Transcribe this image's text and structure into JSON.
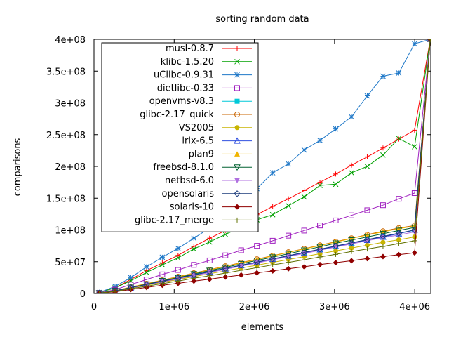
{
  "chart_data": {
    "type": "line",
    "title": "sorting random data",
    "xlabel": "elements",
    "ylabel": "comparisons",
    "xlim": [
      0,
      4200000
    ],
    "ylim": [
      0,
      400000000
    ],
    "x_ticks": [
      {
        "value": 0,
        "label": "0"
      },
      {
        "value": 1000000,
        "label": "1e+06"
      },
      {
        "value": 2000000,
        "label": "2e+06"
      },
      {
        "value": 3000000,
        "label": "3e+06"
      },
      {
        "value": 4000000,
        "label": "4e+06"
      }
    ],
    "y_ticks": [
      {
        "value": 0,
        "label": "0"
      },
      {
        "value": 50000000,
        "label": "5e+07"
      },
      {
        "value": 100000000,
        "label": "1e+08"
      },
      {
        "value": 150000000,
        "label": "1.5e+08"
      },
      {
        "value": 200000000,
        "label": "2e+08"
      },
      {
        "value": 250000000,
        "label": "2.5e+08"
      },
      {
        "value": 300000000,
        "label": "3e+08"
      },
      {
        "value": 350000000,
        "label": "3.5e+08"
      },
      {
        "value": 400000000,
        "label": "4e+08"
      }
    ],
    "grid": false,
    "legend_position": "top-left",
    "x": [
      65536,
      262144,
      458752,
      655360,
      851968,
      1048576,
      1245184,
      1441792,
      1638400,
      1835008,
      2031616,
      2228224,
      2424832,
      2621440,
      2818048,
      3014656,
      3211264,
      3407872,
      3604480,
      3801088,
      3997696,
      4194304
    ],
    "series": [
      {
        "name": "musl-0.8.7",
        "color": "#ff0000",
        "marker": "plus",
        "values": [
          1500000,
          9000000,
          22000000,
          36000000,
          48000000,
          60000000,
          74000000,
          87000000,
          99000000,
          112000000,
          124000000,
          137000000,
          149000000,
          162000000,
          175000000,
          188000000,
          202000000,
          215000000,
          229000000,
          243000000,
          257000000,
          400000000
        ]
      },
      {
        "name": "klibc-1.5.20",
        "color": "#00a000",
        "marker": "cross",
        "values": [
          1400000,
          8800000,
          20000000,
          33000000,
          45000000,
          56000000,
          70000000,
          81000000,
          93000000,
          104000000,
          116000000,
          124000000,
          138000000,
          152000000,
          170000000,
          172000000,
          190000000,
          200000000,
          218000000,
          244000000,
          231000000,
          400000000
        ]
      },
      {
        "name": "uClibc-0.9.31",
        "color": "#1f78c8",
        "marker": "star",
        "values": [
          1600000,
          11000000,
          25000000,
          42000000,
          57000000,
          71000000,
          87000000,
          103000000,
          118000000,
          140000000,
          165000000,
          190000000,
          204000000,
          226000000,
          241000000,
          259000000,
          278000000,
          311000000,
          342000000,
          347000000,
          393000000,
          400000000
        ]
      },
      {
        "name": "dietlibc-0.33",
        "color": "#a020c0",
        "marker": "square-open",
        "values": [
          1000000,
          6000000,
          14000000,
          22000000,
          30000000,
          37000000,
          45000000,
          52000000,
          60000000,
          68000000,
          75000000,
          83000000,
          91000000,
          99000000,
          107000000,
          115000000,
          123000000,
          131000000,
          139000000,
          149000000,
          158000000,
          400000000
        ]
      },
      {
        "name": "openvms-v8.3",
        "color": "#00c8d8",
        "marker": "square-filled",
        "values": [
          700000,
          4000000,
          9500000,
          14500000,
          19500000,
          24500000,
          29500000,
          34500000,
          39500000,
          44500000,
          49500000,
          54500000,
          59500000,
          64500000,
          69500000,
          74500000,
          79500000,
          84500000,
          89500000,
          94500000,
          99500000,
          400000000
        ]
      },
      {
        "name": "glibc-2.17_quick",
        "color": "#c86400",
        "marker": "circle-open",
        "values": [
          750000,
          4300000,
          10000000,
          15500000,
          21000000,
          26500000,
          32000000,
          37500000,
          43000000,
          48500000,
          54000000,
          59500000,
          65000000,
          70500000,
          76000000,
          81500000,
          87000000,
          92500000,
          98000000,
          103000000,
          107000000,
          400000000
        ]
      },
      {
        "name": "VS2005",
        "color": "#c8b400",
        "marker": "circle-filled",
        "values": [
          650000,
          3800000,
          8500000,
          13000000,
          17500000,
          22000000,
          26500000,
          31000000,
          35500000,
          40000000,
          44500000,
          49000000,
          53500000,
          58000000,
          62500000,
          67000000,
          71500000,
          76000000,
          80500000,
          84500000,
          89000000,
          400000000
        ]
      },
      {
        "name": "irix-6.5",
        "color": "#3050e0",
        "marker": "triangle-open",
        "values": [
          680000,
          4000000,
          9000000,
          14000000,
          19000000,
          24000000,
          29000000,
          34000000,
          39000000,
          44000000,
          49000000,
          54000000,
          59000000,
          64000000,
          69000000,
          74000000,
          79000000,
          84000000,
          89000000,
          94000000,
          100000000,
          400000000
        ]
      },
      {
        "name": "plan9",
        "color": "#f0b400",
        "marker": "triangle-filled",
        "values": [
          720000,
          4200000,
          9800000,
          15000000,
          20500000,
          26000000,
          31500000,
          37000000,
          42500000,
          48000000,
          53500000,
          59000000,
          64500000,
          70000000,
          75500000,
          81000000,
          86500000,
          92000000,
          97000000,
          102000000,
          106000000,
          400000000
        ]
      },
      {
        "name": "freebsd-8.1.0",
        "color": "#006030",
        "marker": "triangle-down-open",
        "values": [
          700000,
          4100000,
          9400000,
          14500000,
          20000000,
          25000000,
          30500000,
          36000000,
          41000000,
          46500000,
          52000000,
          57000000,
          62500000,
          68000000,
          73500000,
          79000000,
          84000000,
          89000000,
          94000000,
          99000000,
          104000000,
          400000000
        ]
      },
      {
        "name": "netbsd-6.0",
        "color": "#b070e0",
        "marker": "triangle-down-filled",
        "values": [
          660000,
          3900000,
          8800000,
          13500000,
          18500000,
          23000000,
          28000000,
          33000000,
          38000000,
          43000000,
          48000000,
          53000000,
          58000000,
          63000000,
          68000000,
          73000000,
          78000000,
          83000000,
          88000000,
          92000000,
          97000000,
          400000000
        ]
      },
      {
        "name": "opensolaris",
        "color": "#1a3a7a",
        "marker": "diamond-open",
        "values": [
          690000,
          4000000,
          9100000,
          14000000,
          19200000,
          24200000,
          29300000,
          34300000,
          39400000,
          44400000,
          49500000,
          54500000,
          59600000,
          64600000,
          69700000,
          74700000,
          79800000,
          84800000,
          89900000,
          94900000,
          100000000,
          400000000
        ]
      },
      {
        "name": "solaris-10",
        "color": "#900000",
        "marker": "diamond-filled",
        "values": [
          450000,
          2700000,
          6200000,
          9500000,
          13000000,
          16000000,
          19500000,
          22500000,
          26000000,
          29000000,
          32500000,
          35500000,
          39000000,
          42000000,
          45500000,
          48500000,
          51500000,
          55000000,
          58000000,
          61000000,
          64000000,
          400000000
        ]
      },
      {
        "name": "glibc-2.17_merge",
        "color": "#607000",
        "marker": "plus",
        "values": [
          560000,
          3300000,
          7500000,
          11500000,
          15500000,
          19500000,
          24000000,
          28000000,
          32000000,
          36500000,
          40500000,
          45000000,
          49000000,
          53000000,
          57500000,
          61500000,
          66000000,
          70000000,
          74000000,
          78500000,
          83000000,
          400000000
        ]
      }
    ]
  }
}
